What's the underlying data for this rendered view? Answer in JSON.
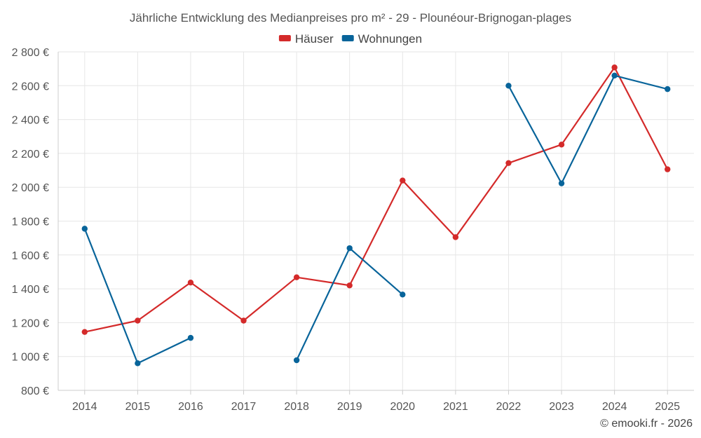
{
  "chart_data": {
    "type": "line",
    "title": "Jährliche Entwicklung des Medianpreises pro m² - 29 - Plounéour-Brignogan-plages",
    "categories": [
      "2014",
      "2015",
      "2016",
      "2017",
      "2018",
      "2019",
      "2020",
      "2021",
      "2022",
      "2023",
      "2024",
      "2025"
    ],
    "ylim": [
      800,
      2800
    ],
    "yticks": [
      800,
      1000,
      1200,
      1400,
      1600,
      1800,
      2000,
      2200,
      2400,
      2600,
      2800
    ],
    "y_tick_labels": [
      "800 €",
      "1 000 €",
      "1 200 €",
      "1 400 €",
      "1 600 €",
      "1 800 €",
      "2 000 €",
      "2 200 €",
      "2 400 €",
      "2 600 €",
      "2 800 €"
    ],
    "grid": true,
    "legend_position": "top-center",
    "series": [
      {
        "name": "Häuser",
        "color": "#d42a2a",
        "values": [
          1145,
          1212,
          1437,
          1212,
          1468,
          1420,
          2040,
          1705,
          2143,
          2252,
          2708,
          2106
        ]
      },
      {
        "name": "Wohnungen",
        "color": "#08649a",
        "values": [
          1755,
          960,
          1110,
          null,
          978,
          1640,
          1366,
          null,
          2600,
          2023,
          2660,
          2580
        ]
      }
    ]
  },
  "credit": "© emooki.fr - 2026"
}
